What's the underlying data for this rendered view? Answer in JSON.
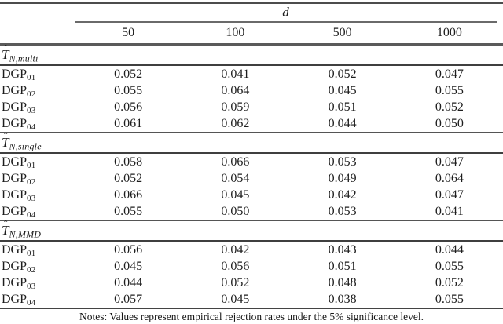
{
  "table": {
    "group_header": "d",
    "columns": [
      "50",
      "100",
      "500",
      "1000"
    ],
    "sections": [
      {
        "title": {
          "hat": "ˆ",
          "base": "T",
          "subscript": "N,multi"
        },
        "rows": [
          {
            "label": "DGP",
            "sub": "01",
            "values": [
              "0.052",
              "0.041",
              "0.052",
              "0.047"
            ]
          },
          {
            "label": "DGP",
            "sub": "02",
            "values": [
              "0.055",
              "0.064",
              "0.045",
              "0.055"
            ]
          },
          {
            "label": "DGP",
            "sub": "03",
            "values": [
              "0.056",
              "0.059",
              "0.051",
              "0.052"
            ]
          },
          {
            "label": "DGP",
            "sub": "04",
            "values": [
              "0.061",
              "0.062",
              "0.044",
              "0.050"
            ]
          }
        ]
      },
      {
        "title": {
          "hat": "ˆ",
          "base": "T",
          "subscript": "N,single"
        },
        "rows": [
          {
            "label": "DGP",
            "sub": "01",
            "values": [
              "0.058",
              "0.066",
              "0.053",
              "0.047"
            ]
          },
          {
            "label": "DGP",
            "sub": "02",
            "values": [
              "0.052",
              "0.054",
              "0.049",
              "0.064"
            ]
          },
          {
            "label": "DGP",
            "sub": "03",
            "values": [
              "0.066",
              "0.045",
              "0.042",
              "0.047"
            ]
          },
          {
            "label": "DGP",
            "sub": "04",
            "values": [
              "0.055",
              "0.050",
              "0.053",
              "0.041"
            ]
          }
        ]
      },
      {
        "title": {
          "hat": "ˆ",
          "base": "T",
          "subscript": "N,MMD"
        },
        "rows": [
          {
            "label": "DGP",
            "sub": "01",
            "values": [
              "0.056",
              "0.042",
              "0.043",
              "0.044"
            ]
          },
          {
            "label": "DGP",
            "sub": "02",
            "values": [
              "0.045",
              "0.056",
              "0.051",
              "0.055"
            ]
          },
          {
            "label": "DGP",
            "sub": "03",
            "values": [
              "0.044",
              "0.052",
              "0.048",
              "0.052"
            ]
          },
          {
            "label": "DGP",
            "sub": "04",
            "values": [
              "0.057",
              "0.045",
              "0.038",
              "0.055"
            ]
          }
        ]
      }
    ],
    "notes": "Notes: Values represent empirical rejection rates under the 5% significance level."
  }
}
